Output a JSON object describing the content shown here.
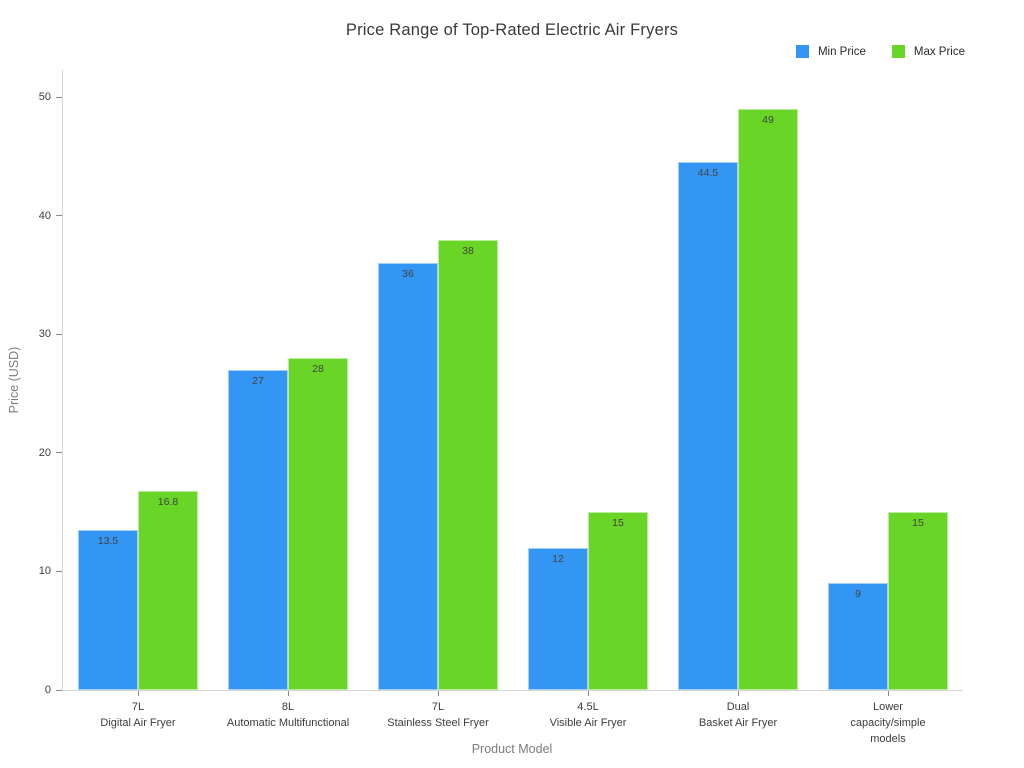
{
  "title": "Price Range of Top-Rated Electric Air Fryers",
  "axes": {
    "xlabel": "Product Model",
    "ylabel": "Price (USD)"
  },
  "legend": {
    "position": "top-right",
    "items": [
      {
        "label": "Min Price",
        "color": "#3396f2"
      },
      {
        "label": "Max Price",
        "color": "#68d527"
      }
    ]
  },
  "chart_data": {
    "type": "bar",
    "title": "Price Range of Top-Rated Electric Air Fryers",
    "xlabel": "Product Model",
    "ylabel": "Price (USD)",
    "categories": [
      "7L\nDigital Air Fryer",
      "8L\nAutomatic Multifunctional",
      "7L\nStainless Steel Fryer",
      "4.5L\nVisible Air Fryer",
      "Dual\nBasket Air Fryer",
      "Lower\ncapacity/simple models"
    ],
    "series": [
      {
        "name": "Min Price",
        "color": "#3396f2",
        "values": [
          13.5,
          27,
          36,
          12,
          44.5,
          9
        ]
      },
      {
        "name": "Max Price",
        "color": "#68d527",
        "values": [
          16.8,
          28,
          38,
          15,
          49,
          15
        ]
      }
    ],
    "yticks": [
      0,
      10,
      20,
      30,
      40,
      50
    ],
    "ylim": [
      0,
      52.3
    ],
    "grid": false,
    "bar_value_labels": true,
    "legend_position": "top-right"
  }
}
